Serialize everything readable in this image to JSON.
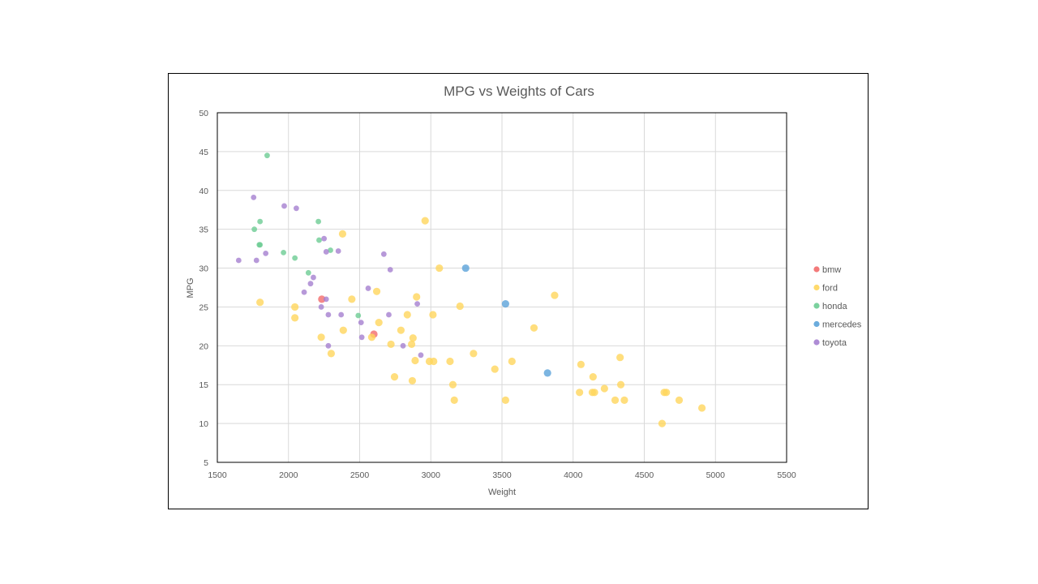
{
  "chart_data": {
    "type": "scatter",
    "title": "MPG vs Weights of Cars",
    "xlabel": "Weight",
    "ylabel": "MPG",
    "xlim": [
      1500,
      5500
    ],
    "ylim": [
      5,
      50
    ],
    "xticks": [
      1500,
      2000,
      2500,
      3000,
      3500,
      4000,
      4500,
      5000,
      5500
    ],
    "yticks": [
      5,
      10,
      15,
      20,
      25,
      30,
      35,
      40,
      45,
      50
    ],
    "grid": true,
    "legend_position": "right",
    "series": [
      {
        "name": "bmw",
        "color": "#F26B6B",
        "points": [
          [
            2234,
            26.0
          ],
          [
            2600,
            21.5
          ]
        ]
      },
      {
        "name": "ford",
        "color": "#FFD65C",
        "points": [
          [
            1800,
            25.6
          ],
          [
            2045,
            25.0
          ],
          [
            2045,
            23.6
          ],
          [
            2230,
            21.1
          ],
          [
            2300,
            19.0
          ],
          [
            2380,
            34.4
          ],
          [
            2385,
            22.0
          ],
          [
            2445,
            26.0
          ],
          [
            2585,
            21.1
          ],
          [
            2620,
            27.0
          ],
          [
            2635,
            23.0
          ],
          [
            2720,
            20.2
          ],
          [
            2745,
            16.0
          ],
          [
            2790,
            22.0
          ],
          [
            2835,
            24.0
          ],
          [
            2865,
            20.2
          ],
          [
            2870,
            15.5
          ],
          [
            2875,
            21.0
          ],
          [
            2890,
            18.1
          ],
          [
            2900,
            26.3
          ],
          [
            2960,
            36.1
          ],
          [
            2990,
            18.0
          ],
          [
            3020,
            18.0
          ],
          [
            3015,
            24.0
          ],
          [
            3060,
            30.0
          ],
          [
            3135,
            18.0
          ],
          [
            3155,
            15.0
          ],
          [
            3165,
            13.0
          ],
          [
            3205,
            25.1
          ],
          [
            3300,
            19.0
          ],
          [
            3450,
            17.0
          ],
          [
            3525,
            13.0
          ],
          [
            3570,
            18.0
          ],
          [
            3725,
            22.3
          ],
          [
            3870,
            26.5
          ],
          [
            4045,
            14.0
          ],
          [
            4055,
            17.6
          ],
          [
            4135,
            14.0
          ],
          [
            4140,
            16.0
          ],
          [
            4150,
            14.0
          ],
          [
            4220,
            14.5
          ],
          [
            4295,
            13.0
          ],
          [
            4330,
            18.5
          ],
          [
            4335,
            15.0
          ],
          [
            4360,
            13.0
          ],
          [
            4625,
            10.0
          ],
          [
            4640,
            14.0
          ],
          [
            4655,
            14.0
          ],
          [
            4745,
            13.0
          ],
          [
            4905,
            12.0
          ]
        ]
      },
      {
        "name": "honda",
        "color": "#6DCC93",
        "points": [
          [
            1760,
            35.0
          ],
          [
            1795,
            33.0
          ],
          [
            1800,
            36.0
          ],
          [
            1800,
            33.0
          ],
          [
            1850,
            44.5
          ],
          [
            1965,
            32.0
          ],
          [
            2045,
            31.3
          ],
          [
            2140,
            29.4
          ],
          [
            2210,
            36.0
          ],
          [
            2215,
            33.6
          ],
          [
            2295,
            32.3
          ],
          [
            2490,
            23.9
          ]
        ]
      },
      {
        "name": "mercedes",
        "color": "#5BA3D9",
        "points": [
          [
            3245,
            30.0
          ],
          [
            3525,
            25.4
          ],
          [
            3820,
            16.5
          ]
        ]
      },
      {
        "name": "toyota",
        "color": "#A57FD0",
        "points": [
          [
            1650,
            31.0
          ],
          [
            1755,
            39.1
          ],
          [
            1775,
            31.0
          ],
          [
            1840,
            31.9
          ],
          [
            1970,
            38.0
          ],
          [
            2055,
            37.7
          ],
          [
            2110,
            26.9
          ],
          [
            2155,
            28.0
          ],
          [
            2175,
            28.8
          ],
          [
            2230,
            25.0
          ],
          [
            2250,
            33.8
          ],
          [
            2265,
            26.0
          ],
          [
            2265,
            32.1
          ],
          [
            2280,
            24.0
          ],
          [
            2280,
            20.0
          ],
          [
            2350,
            32.2
          ],
          [
            2370,
            24.0
          ],
          [
            2510,
            23.0
          ],
          [
            2515,
            21.1
          ],
          [
            2560,
            27.4
          ],
          [
            2670,
            31.8
          ],
          [
            2705,
            24.0
          ],
          [
            2715,
            29.8
          ],
          [
            2805,
            20.0
          ],
          [
            2905,
            25.4
          ],
          [
            2930,
            18.8
          ]
        ]
      }
    ]
  }
}
